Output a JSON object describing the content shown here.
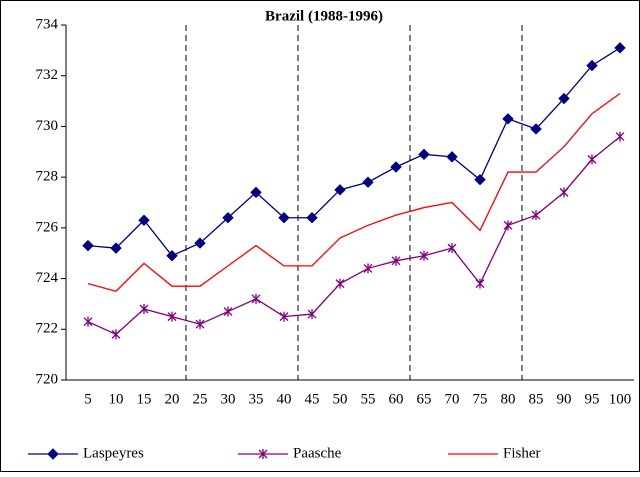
{
  "chart_data": {
    "type": "line",
    "title": "Brazil (1988-1996)",
    "categories": [
      "5",
      "10",
      "15",
      "20",
      "25",
      "30",
      "35",
      "40",
      "45",
      "50",
      "55",
      "60",
      "65",
      "70",
      "75",
      "80",
      "85",
      "90",
      "95",
      "100"
    ],
    "series": [
      {
        "name": "Laspeyres",
        "color": "#000080",
        "marker": "diamond",
        "values": [
          725.3,
          725.2,
          726.3,
          724.9,
          725.4,
          726.4,
          727.4,
          726.4,
          726.4,
          727.5,
          727.8,
          728.4,
          728.9,
          728.8,
          727.9,
          730.3,
          729.9,
          731.1,
          732.4,
          733.1
        ]
      },
      {
        "name": "Paasche",
        "color": "#800080",
        "marker": "asterisk",
        "values": [
          722.3,
          721.8,
          722.8,
          722.5,
          722.2,
          722.7,
          723.2,
          722.5,
          722.6,
          723.8,
          724.4,
          724.7,
          724.9,
          725.2,
          723.8,
          726.1,
          726.5,
          727.4,
          728.7,
          729.6
        ]
      },
      {
        "name": "Fisher",
        "color": "#ff0000",
        "marker": "none",
        "values": [
          723.8,
          723.5,
          724.6,
          723.7,
          723.7,
          724.5,
          725.3,
          724.5,
          724.5,
          725.6,
          726.1,
          726.5,
          726.8,
          727.0,
          725.9,
          728.2,
          728.2,
          729.2,
          730.5,
          731.3
        ]
      }
    ],
    "ylim": [
      720,
      734
    ],
    "yticks": [
      720,
      722,
      724,
      726,
      728,
      730,
      732,
      734
    ],
    "legend": "bottom"
  }
}
